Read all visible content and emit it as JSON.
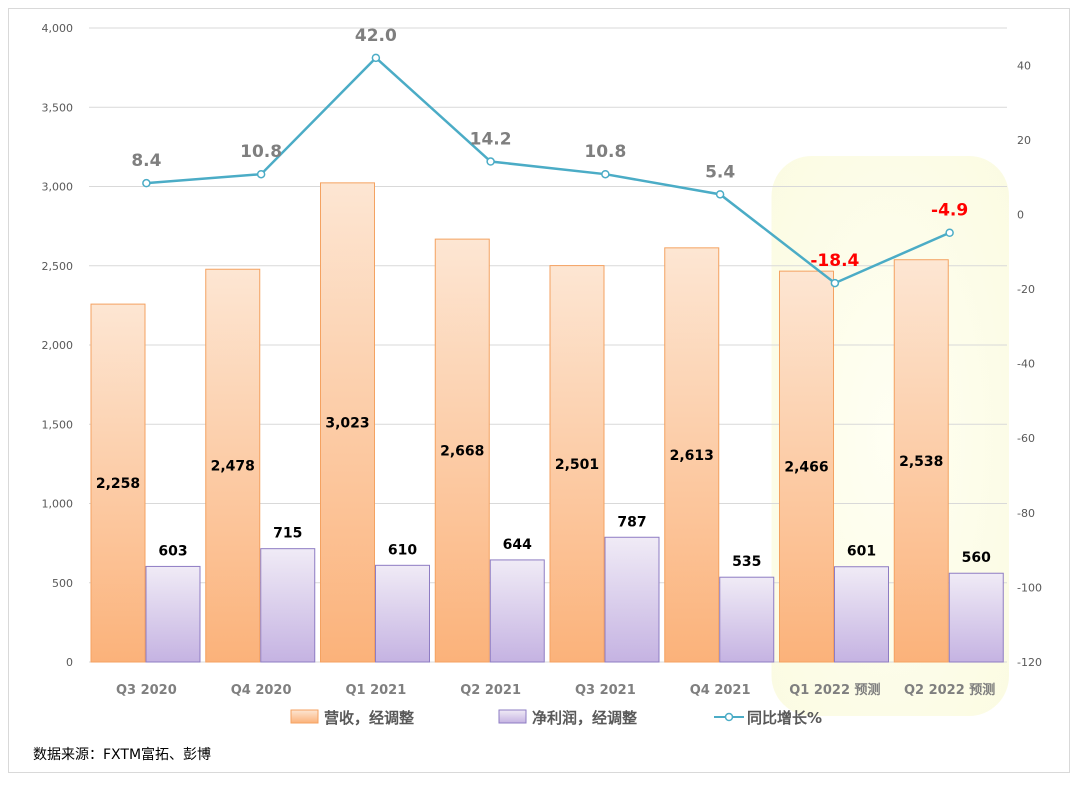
{
  "chart_data": {
    "type": "bar",
    "categories": [
      "Q3 2020",
      "Q4 2020",
      "Q1 2021",
      "Q2 2021",
      "Q3 2021",
      "Q4 2021",
      "Q1 2022 预测",
      "Q2 2022 预测"
    ],
    "series": [
      {
        "name": "营收，经调整",
        "type": "bar",
        "axis": "left",
        "values": [
          2258,
          2478,
          3023,
          2668,
          2501,
          2613,
          2466,
          2538
        ],
        "labels": [
          "2,258",
          "2,478",
          "3,023",
          "2,668",
          "2,501",
          "2,613",
          "2,466",
          "2,538"
        ]
      },
      {
        "name": "净利润，经调整",
        "type": "bar",
        "axis": "left",
        "values": [
          603,
          715,
          610,
          644,
          787,
          535,
          601,
          560
        ],
        "labels": [
          "603",
          "715",
          "610",
          "644",
          "787",
          "535",
          "601",
          "560"
        ]
      },
      {
        "name": "同比增长%",
        "type": "line",
        "axis": "right",
        "values": [
          8.4,
          10.8,
          42.0,
          14.2,
          10.8,
          5.4,
          -18.4,
          -4.9
        ],
        "labels": [
          "8.4",
          "10.8",
          "42.0",
          "14.2",
          "10.8",
          "5.4",
          "-18.4",
          "-4.9"
        ]
      }
    ],
    "left_axis": {
      "min": 0,
      "max": 4000,
      "ticks": [
        0,
        500,
        1000,
        1500,
        2000,
        2500,
        3000,
        3500,
        4000
      ],
      "tick_labels": [
        "0",
        "500",
        "1,000",
        "1,500",
        "2,000",
        "2,500",
        "3,000",
        "3,500",
        "4,000"
      ]
    },
    "right_axis": {
      "min": -120,
      "max": 50,
      "ticks": [
        40,
        20,
        0,
        -20,
        -40,
        -60,
        -80,
        -100,
        -120
      ],
      "tick_labels": [
        "40",
        "20",
        "0",
        "-20",
        "-40",
        "-60",
        "-80",
        "-100",
        "-120"
      ]
    },
    "forecast_categories": [
      "Q1 2022 预测",
      "Q2 2022 预测"
    ],
    "negative_label_color": "#ff0000",
    "line_color": "#4bacc6",
    "label_gray": "#7f7f7f",
    "legend_position": "bottom",
    "grid": true
  },
  "source": "数据来源：FXTM富拓、彭博"
}
